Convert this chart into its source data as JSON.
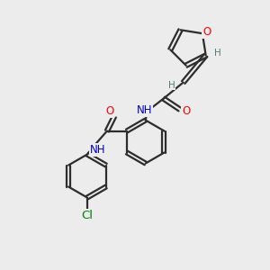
{
  "bg_color": "#ececec",
  "bond_color": "#2d2d2d",
  "atom_colors": {
    "O": "#ff0000",
    "N": "#0000cd",
    "Cl": "#008000",
    "H": "#4a8080",
    "C": "#2d2d2d"
  },
  "figsize": [
    3.0,
    3.0
  ],
  "dpi": 100
}
